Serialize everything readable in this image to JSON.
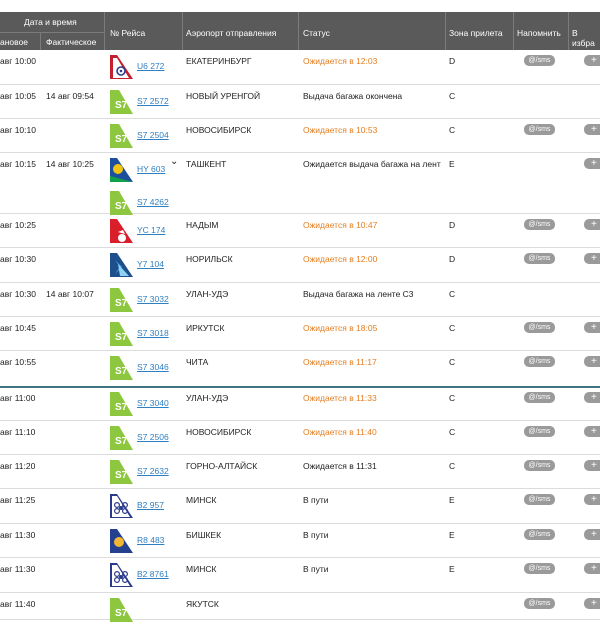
{
  "header": {
    "datetime": "Дата и время",
    "planned": "ановое",
    "actual": "Фактическое",
    "flight": "№ Рейса",
    "origin": "Аэропорт отправления",
    "status": "Статус",
    "zone": "Зона прилета",
    "remind": "Напомнить",
    "fav": "В избра"
  },
  "remind_label": "@/sms",
  "add_label": "+",
  "colors": {
    "waiting": "#e57e1f",
    "s7": "#8dc63f",
    "link": "#2f7fc1"
  },
  "rows": [
    {
      "sched": "авг  10:00",
      "actual": "",
      "flights": [
        {
          "no": "U6 272",
          "logo": "ural-airlines-logo"
        }
      ],
      "origin": "ЕКАТЕРИНБУРГ",
      "status": "Ожидается в 12:03",
      "waiting": true,
      "zone": "D",
      "sms": true,
      "plus": true
    },
    {
      "sched": "авг  10:05",
      "actual": "14 авг  09:54",
      "flights": [
        {
          "no": "S7 2572",
          "logo": "s7-logo"
        }
      ],
      "origin": "НОВЫЙ УРЕНГОЙ",
      "status": "Выдача багажа окончена",
      "waiting": false,
      "zone": "C",
      "sms": false,
      "plus": false
    },
    {
      "sched": "авг  10:10",
      "actual": "",
      "flights": [
        {
          "no": "S7 2504",
          "logo": "s7-logo"
        }
      ],
      "origin": "НОВОСИБИРСК",
      "status": "Ожидается в 10:53",
      "waiting": true,
      "zone": "C",
      "sms": true,
      "plus": true
    },
    {
      "sched": "авг  10:15",
      "actual": "14 авг  10:25",
      "flights": [
        {
          "no": "HY 603",
          "logo": "uzbekistan-airways-logo"
        },
        {
          "no": "S7 4262",
          "logo": "s7-logo"
        }
      ],
      "origin": "ТАШКЕНТ",
      "status": "Ожидается выдача багажа на лент",
      "waiting": false,
      "zone": "E",
      "sms": false,
      "plus": true,
      "chevron": true
    },
    {
      "sched": "авг  10:25",
      "actual": "",
      "flights": [
        {
          "no": "YC 174",
          "logo": "yamal-logo"
        }
      ],
      "origin": "НАДЫМ",
      "status": "Ожидается в 10:47",
      "waiting": true,
      "zone": "D",
      "sms": true,
      "plus": true
    },
    {
      "sched": "авг  10:30",
      "actual": "",
      "flights": [
        {
          "no": "Y7 104",
          "logo": "nordstar-logo"
        }
      ],
      "origin": "НОРИЛЬСК",
      "status": "Ожидается в 12:00",
      "waiting": true,
      "zone": "D",
      "sms": true,
      "plus": true
    },
    {
      "sched": "авг  10:30",
      "actual": "14 авг  10:07",
      "flights": [
        {
          "no": "S7 3032",
          "logo": "s7-logo"
        }
      ],
      "origin": "УЛАН-УДЭ",
      "status": "Выдача багажа на ленте C3",
      "waiting": false,
      "zone": "C",
      "sms": false,
      "plus": false
    },
    {
      "sched": "авг  10:45",
      "actual": "",
      "flights": [
        {
          "no": "S7 3018",
          "logo": "s7-logo"
        }
      ],
      "origin": "ИРКУТСК",
      "status": "Ожидается в 18:05",
      "waiting": true,
      "zone": "C",
      "sms": true,
      "plus": true
    },
    {
      "sched": "авг  10:55",
      "actual": "",
      "flights": [
        {
          "no": "S7 3046",
          "logo": "s7-logo"
        }
      ],
      "origin": "ЧИТА",
      "status": "Ожидается в 11:17",
      "waiting": true,
      "zone": "C",
      "sms": true,
      "plus": true,
      "current": true
    },
    {
      "sched": "авг  11:00",
      "actual": "",
      "flights": [
        {
          "no": "S7 3040",
          "logo": "s7-logo"
        }
      ],
      "origin": "УЛАН-УДЭ",
      "status": "Ожидается в 11:33",
      "waiting": true,
      "zone": "C",
      "sms": true,
      "plus": true
    },
    {
      "sched": "авг  11:10",
      "actual": "",
      "flights": [
        {
          "no": "S7 2506",
          "logo": "s7-logo"
        }
      ],
      "origin": "НОВОСИБИРСК",
      "status": "Ожидается в 11:40",
      "waiting": true,
      "zone": "C",
      "sms": true,
      "plus": true
    },
    {
      "sched": "авг  11:20",
      "actual": "",
      "flights": [
        {
          "no": "S7 2632",
          "logo": "s7-logo"
        }
      ],
      "origin": "ГОРНО-АЛТАЙСК",
      "status": "Ожидается в 11:31",
      "waiting": false,
      "zone": "C",
      "sms": true,
      "plus": true
    },
    {
      "sched": "авг  11:25",
      "actual": "",
      "flights": [
        {
          "no": "B2 957",
          "logo": "belavia-logo"
        }
      ],
      "origin": "МИНСК",
      "status": "В пути",
      "waiting": false,
      "zone": "E",
      "sms": true,
      "plus": true
    },
    {
      "sched": "авг  11:30",
      "actual": "",
      "flights": [
        {
          "no": "R8 483",
          "logo": "sky-kg-logo"
        }
      ],
      "origin": "БИШКЕК",
      "status": "В пути",
      "waiting": false,
      "zone": "E",
      "sms": true,
      "plus": true
    },
    {
      "sched": "авг  11:30",
      "actual": "",
      "flights": [
        {
          "no": "B2 8761",
          "logo": "belavia-logo"
        }
      ],
      "origin": "МИНСК",
      "status": "В пути",
      "waiting": false,
      "zone": "E",
      "sms": true,
      "plus": true
    },
    {
      "sched": "авг  11:40",
      "actual": "",
      "flights": [
        {
          "no": "",
          "logo": "s7-logo"
        }
      ],
      "origin": "ЯКУТСК",
      "status": "",
      "waiting": false,
      "zone": "",
      "sms": true,
      "plus": true
    }
  ]
}
